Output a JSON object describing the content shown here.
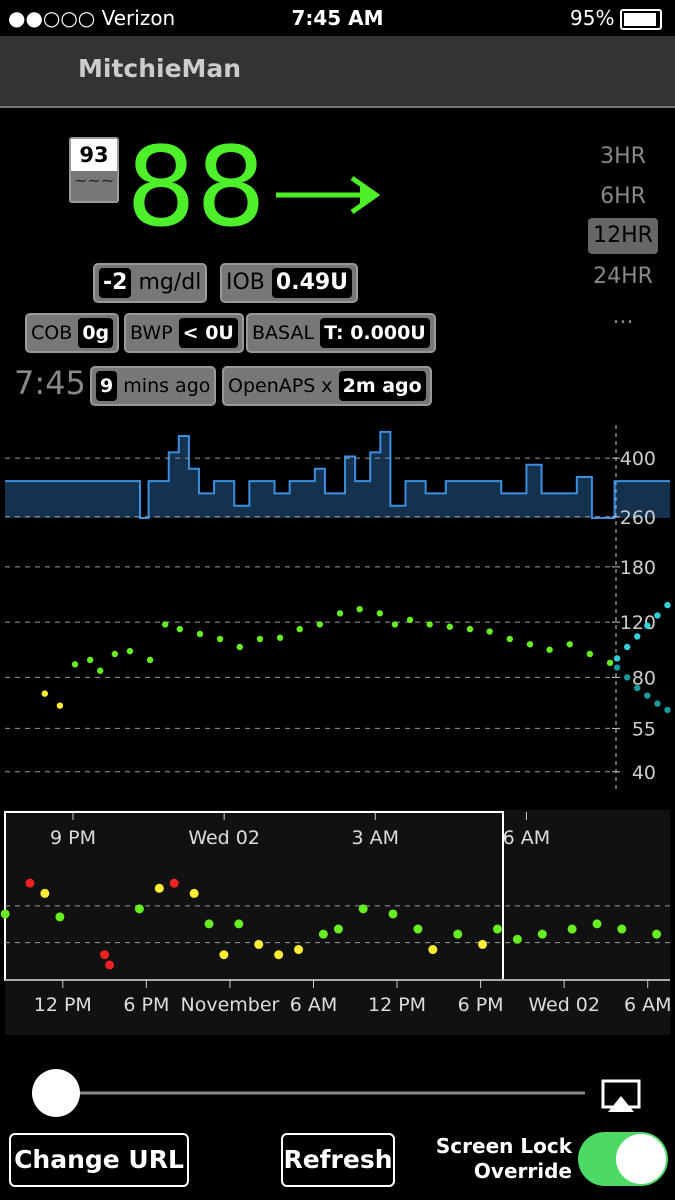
{
  "status_bar": {
    "carrier": "●●○○○ Verizon",
    "time": "7:45 AM",
    "battery": "95%"
  },
  "header": {
    "title": "MitchieMan"
  },
  "display": {
    "last_bg": "93",
    "last_bg_sub": "~~~",
    "bg": "88",
    "delta": "-2",
    "units": "mg/dl",
    "iob_label": "IOB",
    "iob": "0.49U",
    "cob_label": "COB",
    "cob": "0g",
    "bwp_label": "BWP",
    "bwp": "< 0U",
    "basal_label": "BASAL",
    "basal": "T: 0.000U",
    "clock": "7:45",
    "ago_num": "9",
    "ago_text": "mins ago",
    "openaps_label": "OpenAPS x",
    "openaps": "2m ago"
  },
  "range_options": [
    "3HR",
    "6HR",
    "12HR",
    "24HR",
    "..."
  ],
  "buttons": {
    "change_url": "Change URL",
    "refresh": "Refresh",
    "lock_line1": "Screen Lock",
    "lock_line2": "Override"
  },
  "chart_data": [
    {
      "type": "scatter",
      "log_y": true,
      "xlim": [
        19.65,
        32.85
      ],
      "ylim": [
        35,
        510
      ],
      "xticks": [
        {
          "value": 21,
          "label": "9 PM"
        },
        {
          "value": 24,
          "label": "Wed 02"
        },
        {
          "value": 27,
          "label": "3 AM"
        },
        {
          "value": 30,
          "label": "6 AM"
        }
      ],
      "yticks": [
        400,
        260,
        180,
        120,
        80,
        55,
        40
      ],
      "grid": true,
      "basal": {
        "color": "#3a8fe0",
        "x": [
          19.65,
          22.33,
          22.5,
          22.9,
          23.1,
          23.3,
          23.5,
          23.8,
          24.2,
          24.5,
          25.0,
          25.3,
          25.8,
          26.0,
          26.4,
          26.6,
          26.9,
          27.1,
          27.3,
          27.6,
          28.0,
          28.4,
          29.5,
          30.0,
          30.3,
          31.0,
          31.3,
          31.75
        ],
        "values": [
          0.9,
          0.0,
          0.9,
          1.6,
          2.0,
          1.2,
          0.6,
          0.9,
          0.3,
          0.9,
          0.6,
          0.9,
          1.2,
          0.6,
          1.5,
          0.9,
          1.6,
          2.1,
          0.3,
          0.9,
          0.6,
          0.9,
          0.6,
          1.3,
          0.6,
          1.0,
          0.0,
          0.9
        ]
      },
      "series": [
        {
          "color": "#66ee22",
          "x": [
            20.44,
            20.74,
            21.04,
            21.34,
            21.54,
            21.83,
            22.13,
            22.53,
            22.83,
            23.12,
            23.52,
            23.92,
            24.31,
            24.71,
            25.11,
            25.5,
            25.9,
            26.3,
            26.69,
            27.09,
            27.39,
            27.69,
            28.08,
            28.48,
            28.88,
            29.27,
            29.67,
            30.07,
            30.46,
            30.86,
            31.26,
            31.66
          ],
          "values": [
            71,
            65,
            88,
            91,
            84,
            95,
            97,
            91,
            118,
            114,
            110,
            106,
            100,
            106,
            107,
            114,
            118,
            128,
            132,
            128,
            118,
            122,
            118,
            116,
            114,
            112,
            106,
            102,
            98,
            102,
            95,
            89
          ],
          "colors": [
            "#ffee33",
            "#ffee33",
            "#66ee22",
            "#66ee22",
            "#66ee22",
            "#66ee22",
            "#66ee22",
            "#66ee22",
            "#66ee22",
            "#66ee22",
            "#66ee22",
            "#66ee22",
            "#66ee22",
            "#66ee22",
            "#66ee22",
            "#66ee22",
            "#66ee22",
            "#66ee22",
            "#66ee22",
            "#66ee22",
            "#66ee22",
            "#66ee22",
            "#66ee22",
            "#66ee22",
            "#66ee22",
            "#66ee22",
            "#66ee22",
            "#66ee22",
            "#66ee22",
            "#66ee22",
            "#66ee22",
            "#66ee22"
          ]
        },
        {
          "color": "#33d0d8",
          "x": [
            31.8,
            32.0,
            32.2,
            32.4,
            32.6,
            32.8
          ],
          "values": [
            92,
            100,
            108,
            117,
            126,
            136
          ]
        },
        {
          "color": "#1a9aa0",
          "x": [
            31.8,
            32.0,
            32.2,
            32.4,
            32.6,
            32.8
          ],
          "values": [
            86,
            80,
            74,
            70,
            66,
            63
          ]
        }
      ]
    },
    {
      "type": "scatter",
      "log_y": false,
      "xlim": [
        7.85,
        55.6
      ],
      "ylim": [
        -22,
        436
      ],
      "xticks": [
        {
          "value": 12,
          "label": "12 PM"
        },
        {
          "value": 18,
          "label": "6 PM"
        },
        {
          "value": 24,
          "label": "November"
        },
        {
          "value": 30,
          "label": "6 AM"
        },
        {
          "value": 36,
          "label": "12 PM"
        },
        {
          "value": 42,
          "label": "6 PM"
        },
        {
          "value": 48,
          "label": "Wed 02"
        },
        {
          "value": 54,
          "label": "6 AM"
        }
      ],
      "target_lines": [
        80,
        180
      ],
      "series": [
        {
          "color": "#66ee22",
          "x": [
            7.86,
            9.64,
            10.71,
            11.79,
            15,
            15.36,
            17.5,
            18.93,
            20,
            21.43,
            22.5,
            23.57,
            24.64,
            26.07,
            27.5,
            28.93,
            30.71,
            31.79,
            33.57,
            35.71,
            37.5,
            38.57,
            40.36,
            42.14,
            43.21,
            44.64,
            46.43,
            48.57,
            50.36,
            52.14,
            54.64
          ],
          "values": [
            158,
            242,
            214,
            150,
            47,
            19,
            172,
            228,
            242,
            214,
            131,
            47,
            131,
            75,
            47,
            61,
            103,
            117,
            172,
            158,
            117,
            61,
            103,
            75,
            117,
            89,
            103,
            117,
            131,
            117,
            103
          ],
          "colors": [
            "#66ee22",
            "#ee2222",
            "#ffee33",
            "#66ee22",
            "#ee2222",
            "#ee2222",
            "#66ee22",
            "#ffee33",
            "#ee2222",
            "#ffee33",
            "#66ee22",
            "#ffee33",
            "#66ee22",
            "#ffee33",
            "#ffee33",
            "#ffee33",
            "#66ee22",
            "#66ee22",
            "#66ee22",
            "#66ee22",
            "#66ee22",
            "#ffee33",
            "#66ee22",
            "#ffee33",
            "#66ee22",
            "#66ee22",
            "#66ee22",
            "#66ee22",
            "#66ee22",
            "#66ee22",
            "#66ee22"
          ]
        }
      ]
    }
  ]
}
